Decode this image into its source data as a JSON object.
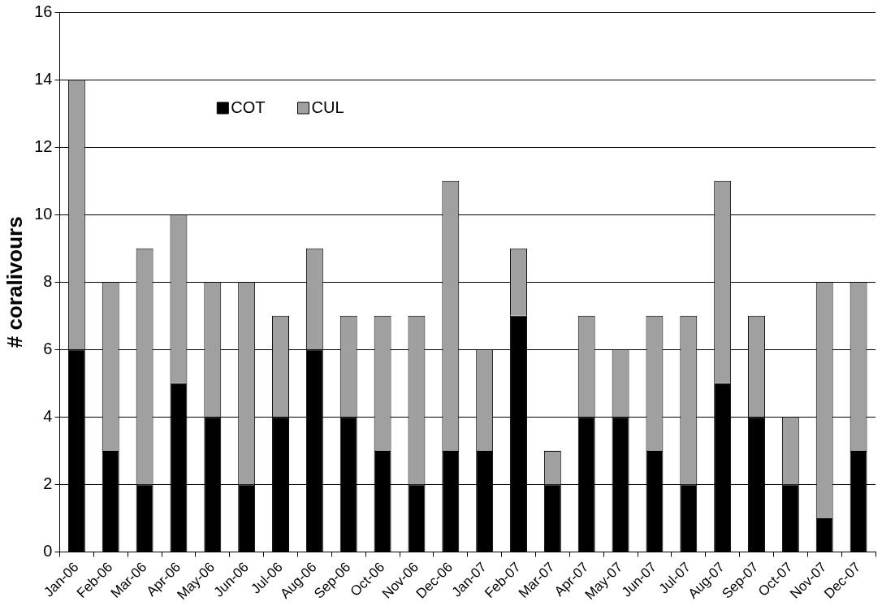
{
  "chart_data": {
    "type": "bar",
    "stacked": true,
    "ylabel": "# coralivours",
    "categories": [
      "Jan-06",
      "Feb-06",
      "Mar-06",
      "Apr-06",
      "May-06",
      "Jun-06",
      "Jul-06",
      "Aug-06",
      "Sep-06",
      "Oct-06",
      "Nov-06",
      "Dec-06",
      "Jan-07",
      "Feb-07",
      "Mar-07",
      "Apr-07",
      "May-07",
      "Jun-07",
      "Jul-07",
      "Aug-07",
      "Sep-07",
      "Oct-07",
      "Nov-07",
      "Dec-07"
    ],
    "series": [
      {
        "name": "COT",
        "color": "#000000",
        "values": [
          6,
          3,
          2,
          5,
          4,
          2,
          4,
          6,
          4,
          3,
          2,
          3,
          3,
          7,
          2,
          4,
          4,
          3,
          2,
          5,
          4,
          2,
          1,
          3
        ]
      },
      {
        "name": "CUL",
        "color": "#a0a0a0",
        "values": [
          8,
          5,
          7,
          5,
          4,
          6,
          3,
          3,
          3,
          4,
          5,
          8,
          3,
          2,
          1,
          3,
          2,
          4,
          5,
          6,
          3,
          2,
          7,
          5
        ]
      }
    ],
    "ylim": [
      0,
      16
    ],
    "yticks": [
      0,
      2,
      4,
      6,
      8,
      10,
      12,
      14,
      16
    ],
    "grid": "y",
    "legend": "top left"
  }
}
